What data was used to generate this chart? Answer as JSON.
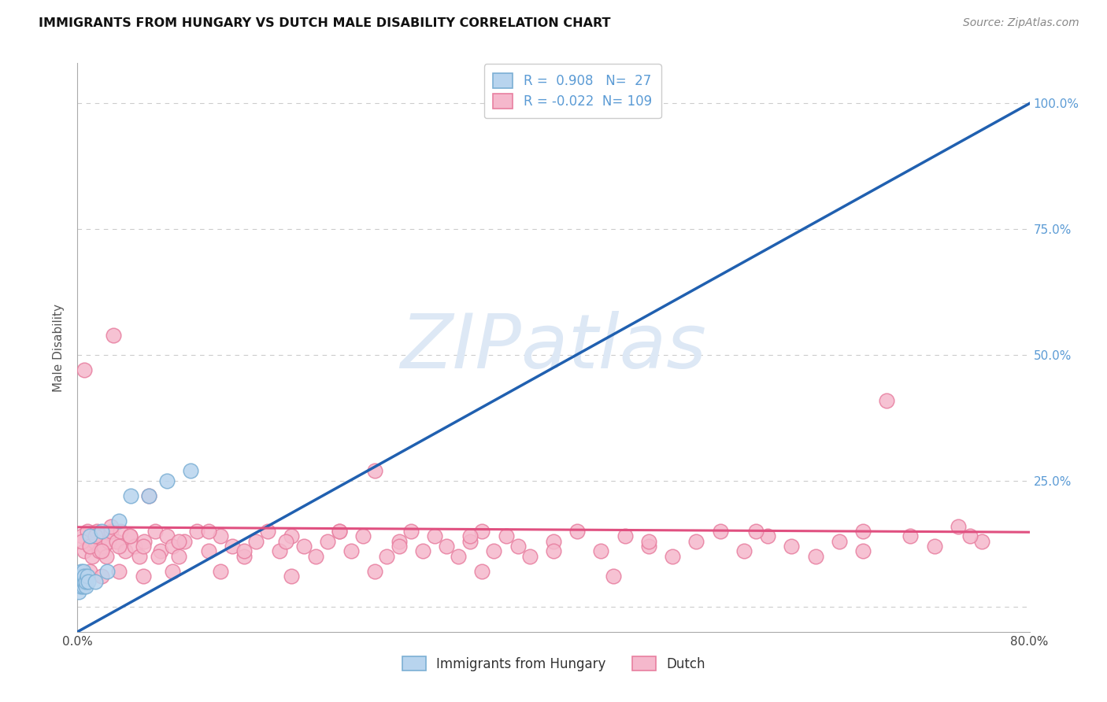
{
  "title": "IMMIGRANTS FROM HUNGARY VS DUTCH MALE DISABILITY CORRELATION CHART",
  "source": "Source: ZipAtlas.com",
  "ylabel": "Male Disability",
  "xlim": [
    0.0,
    0.8
  ],
  "ylim": [
    -0.05,
    1.08
  ],
  "yticks": [
    0.0,
    0.25,
    0.5,
    0.75,
    1.0
  ],
  "ytick_labels": [
    "",
    "25.0%",
    "50.0%",
    "75.0%",
    "100.0%"
  ],
  "xticks": [
    0.0,
    0.1,
    0.2,
    0.3,
    0.4,
    0.5,
    0.6,
    0.7,
    0.8
  ],
  "xtick_labels": [
    "0.0%",
    "",
    "",
    "",
    "",
    "",
    "",
    "",
    "80.0%"
  ],
  "hungary_color": "#b8d4ee",
  "dutch_color": "#f5b8cc",
  "hungary_edge": "#7bafd4",
  "dutch_edge": "#e87fa0",
  "line_hungary_color": "#2060b0",
  "line_dutch_color": "#e05080",
  "R_hungary": 0.908,
  "N_hungary": 27,
  "R_dutch": -0.022,
  "N_dutch": 109,
  "watermark": "ZIPatlas",
  "watermark_color": "#dde8f5",
  "hline_x0": 0.0,
  "hline_y0": -0.05,
  "hline_x1": 0.8,
  "hline_y1": 1.0,
  "dline_x0": 0.0,
  "dline_y0": 0.158,
  "dline_x1": 0.8,
  "dline_y1": 0.148,
  "hungary_x": [
    0.001,
    0.001,
    0.002,
    0.002,
    0.003,
    0.003,
    0.003,
    0.004,
    0.004,
    0.005,
    0.005,
    0.005,
    0.006,
    0.006,
    0.007,
    0.007,
    0.008,
    0.009,
    0.01,
    0.015,
    0.02,
    0.025,
    0.035,
    0.045,
    0.06,
    0.075,
    0.095
  ],
  "hungary_y": [
    0.04,
    0.03,
    0.05,
    0.06,
    0.04,
    0.05,
    0.07,
    0.05,
    0.06,
    0.04,
    0.05,
    0.07,
    0.05,
    0.06,
    0.04,
    0.05,
    0.06,
    0.05,
    0.14,
    0.05,
    0.15,
    0.07,
    0.17,
    0.22,
    0.22,
    0.25,
    0.27
  ],
  "dutch_x": [
    0.004,
    0.006,
    0.008,
    0.01,
    0.012,
    0.014,
    0.016,
    0.018,
    0.02,
    0.022,
    0.024,
    0.026,
    0.028,
    0.03,
    0.033,
    0.036,
    0.04,
    0.044,
    0.048,
    0.052,
    0.056,
    0.06,
    0.065,
    0.07,
    0.075,
    0.08,
    0.085,
    0.09,
    0.1,
    0.11,
    0.12,
    0.13,
    0.14,
    0.15,
    0.16,
    0.17,
    0.18,
    0.19,
    0.2,
    0.21,
    0.22,
    0.23,
    0.24,
    0.25,
    0.26,
    0.27,
    0.28,
    0.29,
    0.3,
    0.31,
    0.32,
    0.33,
    0.34,
    0.35,
    0.36,
    0.37,
    0.38,
    0.4,
    0.42,
    0.44,
    0.46,
    0.48,
    0.5,
    0.52,
    0.54,
    0.56,
    0.58,
    0.6,
    0.62,
    0.64,
    0.66,
    0.68,
    0.7,
    0.72,
    0.74,
    0.76,
    0.004,
    0.006,
    0.01,
    0.015,
    0.02,
    0.028,
    0.035,
    0.044,
    0.055,
    0.068,
    0.085,
    0.11,
    0.14,
    0.175,
    0.22,
    0.27,
    0.33,
    0.4,
    0.48,
    0.57,
    0.66,
    0.75,
    0.005,
    0.01,
    0.02,
    0.035,
    0.055,
    0.08,
    0.12,
    0.18,
    0.25,
    0.34,
    0.45
  ],
  "dutch_y": [
    0.14,
    0.11,
    0.15,
    0.12,
    0.1,
    0.13,
    0.15,
    0.11,
    0.14,
    0.12,
    0.1,
    0.13,
    0.15,
    0.54,
    0.13,
    0.15,
    0.11,
    0.14,
    0.12,
    0.1,
    0.13,
    0.22,
    0.15,
    0.11,
    0.14,
    0.12,
    0.1,
    0.13,
    0.15,
    0.11,
    0.14,
    0.12,
    0.1,
    0.13,
    0.15,
    0.11,
    0.14,
    0.12,
    0.1,
    0.13,
    0.15,
    0.11,
    0.14,
    0.27,
    0.1,
    0.13,
    0.15,
    0.11,
    0.14,
    0.12,
    0.1,
    0.13,
    0.15,
    0.11,
    0.14,
    0.12,
    0.1,
    0.13,
    0.15,
    0.11,
    0.14,
    0.12,
    0.1,
    0.13,
    0.15,
    0.11,
    0.14,
    0.12,
    0.1,
    0.13,
    0.15,
    0.41,
    0.14,
    0.12,
    0.16,
    0.13,
    0.13,
    0.47,
    0.12,
    0.14,
    0.11,
    0.16,
    0.12,
    0.14,
    0.12,
    0.1,
    0.13,
    0.15,
    0.11,
    0.13,
    0.15,
    0.12,
    0.14,
    0.11,
    0.13,
    0.15,
    0.11,
    0.14,
    0.06,
    0.07,
    0.06,
    0.07,
    0.06,
    0.07,
    0.07,
    0.06,
    0.07,
    0.07,
    0.06
  ]
}
